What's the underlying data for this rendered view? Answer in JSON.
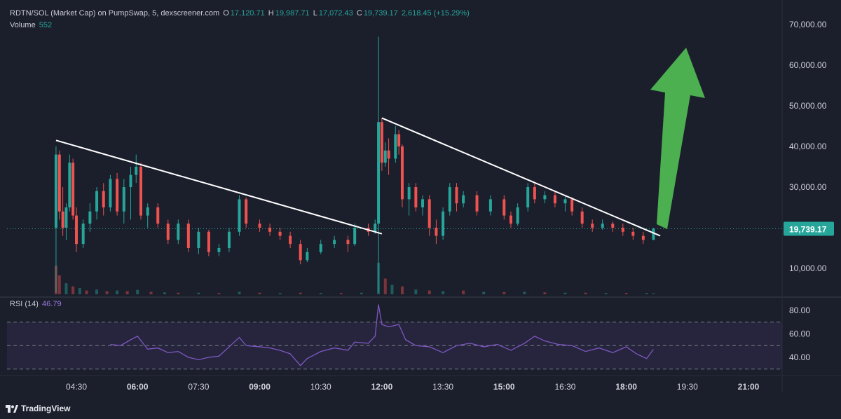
{
  "header": {
    "symbol_label": "RDTN/SOL (Market Cap) on PumpSwap, 5, dexscreener.com",
    "o_label": "O",
    "o_value": "17,120.71",
    "h_label": "H",
    "h_value": "19,987.71",
    "l_label": "L",
    "l_value": "17,072.43",
    "c_label": "C",
    "c_value": "19,739.17",
    "change": "2,618.45 (+15.29%)",
    "volume_label": "Volume",
    "volume_value": "552"
  },
  "rsi": {
    "label": "RSI (14)",
    "value": "46.79",
    "levels": [
      70,
      50,
      30
    ],
    "ticks": [
      "80.00",
      "60.00",
      "40.00"
    ]
  },
  "price_axis": {
    "ticks": [
      "70,000.00",
      "60,000.00",
      "50,000.00",
      "40,000.00",
      "30,000.00",
      "10,000.00"
    ],
    "last_price": "19,739.17"
  },
  "time_axis": [
    "04:30",
    "06:00",
    "07:30",
    "09:00",
    "10:30",
    "12:00",
    "13:30",
    "15:00",
    "16:30",
    "18:00",
    "19:30",
    "21:00"
  ],
  "branding": {
    "name": "TradingView"
  },
  "colors": {
    "up": "#26a69a",
    "down": "#ef5350",
    "rsi": "#7e57c2",
    "arrow": "#4caf50",
    "background": "#1b1e2b"
  },
  "chart_data": {
    "type": "candlestick",
    "price_range": [
      0,
      72000
    ],
    "time_range": [
      "04:00",
      "21:30"
    ],
    "candles": [
      {
        "t": "04:00",
        "o": 20000,
        "h": 40000,
        "l": 4000,
        "c": 38000
      },
      {
        "t": "04:05",
        "o": 38000,
        "h": 39000,
        "l": 22000,
        "c": 24000
      },
      {
        "t": "04:10",
        "o": 24000,
        "h": 30000,
        "l": 18000,
        "c": 20000
      },
      {
        "t": "04:15",
        "o": 20000,
        "h": 26000,
        "l": 17000,
        "c": 25000
      },
      {
        "t": "04:20",
        "o": 25000,
        "h": 38000,
        "l": 24000,
        "c": 36000
      },
      {
        "t": "04:25",
        "o": 36000,
        "h": 37000,
        "l": 22000,
        "c": 23000
      },
      {
        "t": "04:30",
        "o": 23000,
        "h": 25000,
        "l": 14000,
        "c": 16000
      },
      {
        "t": "04:40",
        "o": 16000,
        "h": 22000,
        "l": 15000,
        "c": 21000
      },
      {
        "t": "04:50",
        "o": 21000,
        "h": 26000,
        "l": 19000,
        "c": 24000
      },
      {
        "t": "05:00",
        "o": 24000,
        "h": 30000,
        "l": 22000,
        "c": 29000
      },
      {
        "t": "05:10",
        "o": 29000,
        "h": 31000,
        "l": 23000,
        "c": 25000
      },
      {
        "t": "05:20",
        "o": 25000,
        "h": 33000,
        "l": 24000,
        "c": 32000
      },
      {
        "t": "05:30",
        "o": 32000,
        "h": 33500,
        "l": 23000,
        "c": 24000
      },
      {
        "t": "05:40",
        "o": 24000,
        "h": 32000,
        "l": 21000,
        "c": 30000
      },
      {
        "t": "05:50",
        "o": 30000,
        "h": 35000,
        "l": 22000,
        "c": 33000
      },
      {
        "t": "05:58",
        "o": 33000,
        "h": 38000,
        "l": 31000,
        "c": 35000
      },
      {
        "t": "06:05",
        "o": 35000,
        "h": 36000,
        "l": 22000,
        "c": 23000
      },
      {
        "t": "06:15",
        "o": 23000,
        "h": 26000,
        "l": 20000,
        "c": 25000
      },
      {
        "t": "06:30",
        "o": 25000,
        "h": 26000,
        "l": 20000,
        "c": 21000
      },
      {
        "t": "06:45",
        "o": 21000,
        "h": 22000,
        "l": 16000,
        "c": 17000
      },
      {
        "t": "07:00",
        "o": 17000,
        "h": 22000,
        "l": 16000,
        "c": 21000
      },
      {
        "t": "07:15",
        "o": 21000,
        "h": 22000,
        "l": 14000,
        "c": 15000
      },
      {
        "t": "07:30",
        "o": 15000,
        "h": 20000,
        "l": 13500,
        "c": 19000
      },
      {
        "t": "07:45",
        "o": 19000,
        "h": 19500,
        "l": 13000,
        "c": 14000
      },
      {
        "t": "08:00",
        "o": 14000,
        "h": 16000,
        "l": 13000,
        "c": 15000
      },
      {
        "t": "08:15",
        "o": 15000,
        "h": 20000,
        "l": 14000,
        "c": 19000
      },
      {
        "t": "08:30",
        "o": 19000,
        "h": 28000,
        "l": 18000,
        "c": 27000
      },
      {
        "t": "08:40",
        "o": 27000,
        "h": 27500,
        "l": 20000,
        "c": 21000
      },
      {
        "t": "09:00",
        "o": 21000,
        "h": 22000,
        "l": 19000,
        "c": 20000
      },
      {
        "t": "09:15",
        "o": 20000,
        "h": 21000,
        "l": 18000,
        "c": 19000
      },
      {
        "t": "09:30",
        "o": 19000,
        "h": 20000,
        "l": 17000,
        "c": 18000
      },
      {
        "t": "09:45",
        "o": 18000,
        "h": 19000,
        "l": 15000,
        "c": 16000
      },
      {
        "t": "10:00",
        "o": 16000,
        "h": 17000,
        "l": 11000,
        "c": 12000
      },
      {
        "t": "10:10",
        "o": 12000,
        "h": 15000,
        "l": 11500,
        "c": 14000
      },
      {
        "t": "10:30",
        "o": 14000,
        "h": 17000,
        "l": 13500,
        "c": 16000
      },
      {
        "t": "10:50",
        "o": 16000,
        "h": 18000,
        "l": 15000,
        "c": 17000
      },
      {
        "t": "11:10",
        "o": 17000,
        "h": 18000,
        "l": 14000,
        "c": 16000
      },
      {
        "t": "11:20",
        "o": 16000,
        "h": 21000,
        "l": 15500,
        "c": 20000
      },
      {
        "t": "11:40",
        "o": 20000,
        "h": 21000,
        "l": 18000,
        "c": 19000
      },
      {
        "t": "11:50",
        "o": 19000,
        "h": 22000,
        "l": 18500,
        "c": 21000
      },
      {
        "t": "11:55",
        "o": 21000,
        "h": 67000,
        "l": 4000,
        "c": 46000
      },
      {
        "t": "12:00",
        "o": 46000,
        "h": 47000,
        "l": 34000,
        "c": 36000
      },
      {
        "t": "12:05",
        "o": 36000,
        "h": 41000,
        "l": 35000,
        "c": 39000
      },
      {
        "t": "12:10",
        "o": 39000,
        "h": 42000,
        "l": 33000,
        "c": 37000
      },
      {
        "t": "12:20",
        "o": 37000,
        "h": 45000,
        "l": 36000,
        "c": 43000
      },
      {
        "t": "12:25",
        "o": 43000,
        "h": 44000,
        "l": 38000,
        "c": 40000
      },
      {
        "t": "12:30",
        "o": 40000,
        "h": 40500,
        "l": 25000,
        "c": 27000
      },
      {
        "t": "12:40",
        "o": 27000,
        "h": 31000,
        "l": 23000,
        "c": 30000
      },
      {
        "t": "12:50",
        "o": 30000,
        "h": 31000,
        "l": 24000,
        "c": 25000
      },
      {
        "t": "13:00",
        "o": 25000,
        "h": 28000,
        "l": 23000,
        "c": 27000
      },
      {
        "t": "13:10",
        "o": 27000,
        "h": 28000,
        "l": 18000,
        "c": 20000
      },
      {
        "t": "13:20",
        "o": 20000,
        "h": 22000,
        "l": 16000,
        "c": 18000
      },
      {
        "t": "13:30",
        "o": 18000,
        "h": 25000,
        "l": 17000,
        "c": 24000
      },
      {
        "t": "13:40",
        "o": 24000,
        "h": 31000,
        "l": 23000,
        "c": 30000
      },
      {
        "t": "13:50",
        "o": 30000,
        "h": 31000,
        "l": 24000,
        "c": 26000
      },
      {
        "t": "14:00",
        "o": 26000,
        "h": 29000,
        "l": 25000,
        "c": 28000
      },
      {
        "t": "14:20",
        "o": 28000,
        "h": 29000,
        "l": 23000,
        "c": 24000
      },
      {
        "t": "14:40",
        "o": 24000,
        "h": 28000,
        "l": 23000,
        "c": 27000
      },
      {
        "t": "15:00",
        "o": 27000,
        "h": 28000,
        "l": 22000,
        "c": 23000
      },
      {
        "t": "15:10",
        "o": 23000,
        "h": 24000,
        "l": 20000,
        "c": 21000
      },
      {
        "t": "15:20",
        "o": 21000,
        "h": 26000,
        "l": 20500,
        "c": 25000
      },
      {
        "t": "15:35",
        "o": 25000,
        "h": 31000,
        "l": 24000,
        "c": 30000
      },
      {
        "t": "15:45",
        "o": 30000,
        "h": 31000,
        "l": 26000,
        "c": 27000
      },
      {
        "t": "16:00",
        "o": 27000,
        "h": 29000,
        "l": 26000,
        "c": 28000
      },
      {
        "t": "16:15",
        "o": 28000,
        "h": 29000,
        "l": 25000,
        "c": 26000
      },
      {
        "t": "16:30",
        "o": 26000,
        "h": 28000,
        "l": 24000,
        "c": 27000
      },
      {
        "t": "16:40",
        "o": 27000,
        "h": 27500,
        "l": 23000,
        "c": 24000
      },
      {
        "t": "16:55",
        "o": 24000,
        "h": 25000,
        "l": 20000,
        "c": 21000
      },
      {
        "t": "17:10",
        "o": 21000,
        "h": 22000,
        "l": 19000,
        "c": 20000
      },
      {
        "t": "17:25",
        "o": 20000,
        "h": 22000,
        "l": 19500,
        "c": 21000
      },
      {
        "t": "17:40",
        "o": 21000,
        "h": 21500,
        "l": 19000,
        "c": 20000
      },
      {
        "t": "17:55",
        "o": 20000,
        "h": 21000,
        "l": 18000,
        "c": 19000
      },
      {
        "t": "18:10",
        "o": 19000,
        "h": 20000,
        "l": 17000,
        "c": 18000
      },
      {
        "t": "18:25",
        "o": 18000,
        "h": 19000,
        "l": 16000,
        "c": 17000
      },
      {
        "t": "18:40",
        "o": 17000,
        "h": 20000,
        "l": 17000,
        "c": 19739
      }
    ],
    "volume_bars": [
      {
        "t": "04:00",
        "v": 0.9,
        "up": false
      },
      {
        "t": "04:05",
        "v": 0.6,
        "up": false
      },
      {
        "t": "04:15",
        "v": 0.35,
        "up": true
      },
      {
        "t": "04:25",
        "v": 0.25,
        "up": false
      },
      {
        "t": "04:35",
        "v": 0.2,
        "up": true
      },
      {
        "t": "04:45",
        "v": 0.12,
        "up": false
      },
      {
        "t": "05:00",
        "v": 0.15,
        "up": true
      },
      {
        "t": "05:15",
        "v": 0.1,
        "up": false
      },
      {
        "t": "05:30",
        "v": 0.12,
        "up": true
      },
      {
        "t": "05:45",
        "v": 0.1,
        "up": false
      },
      {
        "t": "06:00",
        "v": 0.14,
        "up": true
      },
      {
        "t": "06:20",
        "v": 0.08,
        "up": false
      },
      {
        "t": "06:40",
        "v": 0.06,
        "up": true
      },
      {
        "t": "07:00",
        "v": 0.05,
        "up": false
      },
      {
        "t": "07:30",
        "v": 0.05,
        "up": true
      },
      {
        "t": "08:00",
        "v": 0.04,
        "up": false
      },
      {
        "t": "08:30",
        "v": 0.08,
        "up": true
      },
      {
        "t": "09:00",
        "v": 0.05,
        "up": false
      },
      {
        "t": "09:30",
        "v": 0.04,
        "up": true
      },
      {
        "t": "10:00",
        "v": 0.05,
        "up": false
      },
      {
        "t": "10:30",
        "v": 0.04,
        "up": true
      },
      {
        "t": "11:00",
        "v": 0.04,
        "up": false
      },
      {
        "t": "11:30",
        "v": 0.05,
        "up": true
      },
      {
        "t": "11:55",
        "v": 1.0,
        "up": true
      },
      {
        "t": "12:05",
        "v": 0.5,
        "up": false
      },
      {
        "t": "12:15",
        "v": 0.3,
        "up": true
      },
      {
        "t": "12:30",
        "v": 0.25,
        "up": false
      },
      {
        "t": "12:50",
        "v": 0.15,
        "up": true
      },
      {
        "t": "13:10",
        "v": 0.12,
        "up": false
      },
      {
        "t": "13:30",
        "v": 0.1,
        "up": true
      },
      {
        "t": "14:00",
        "v": 0.12,
        "up": false
      },
      {
        "t": "14:30",
        "v": 0.08,
        "up": true
      },
      {
        "t": "15:00",
        "v": 0.07,
        "up": false
      },
      {
        "t": "15:30",
        "v": 0.08,
        "up": true
      },
      {
        "t": "16:00",
        "v": 0.06,
        "up": false
      },
      {
        "t": "16:30",
        "v": 0.05,
        "up": true
      },
      {
        "t": "17:00",
        "v": 0.05,
        "up": false
      },
      {
        "t": "17:30",
        "v": 0.04,
        "up": true
      },
      {
        "t": "18:00",
        "v": 0.04,
        "up": false
      },
      {
        "t": "18:30",
        "v": 0.04,
        "up": true
      },
      {
        "t": "18:40",
        "v": 0.03,
        "up": true
      }
    ],
    "rsi_series": [
      {
        "t": "05:20",
        "v": 51
      },
      {
        "t": "05:35",
        "v": 50
      },
      {
        "t": "05:50",
        "v": 55
      },
      {
        "t": "06:00",
        "v": 58
      },
      {
        "t": "06:15",
        "v": 47
      },
      {
        "t": "06:30",
        "v": 48
      },
      {
        "t": "06:45",
        "v": 44
      },
      {
        "t": "07:00",
        "v": 45
      },
      {
        "t": "07:15",
        "v": 40
      },
      {
        "t": "07:30",
        "v": 38
      },
      {
        "t": "07:45",
        "v": 40
      },
      {
        "t": "08:00",
        "v": 41
      },
      {
        "t": "08:15",
        "v": 49
      },
      {
        "t": "08:30",
        "v": 57
      },
      {
        "t": "08:40",
        "v": 50
      },
      {
        "t": "09:00",
        "v": 49
      },
      {
        "t": "09:15",
        "v": 48
      },
      {
        "t": "09:30",
        "v": 46
      },
      {
        "t": "09:45",
        "v": 43
      },
      {
        "t": "10:00",
        "v": 33
      },
      {
        "t": "10:10",
        "v": 39
      },
      {
        "t": "10:30",
        "v": 45
      },
      {
        "t": "10:50",
        "v": 48
      },
      {
        "t": "11:10",
        "v": 46
      },
      {
        "t": "11:20",
        "v": 53
      },
      {
        "t": "11:40",
        "v": 52
      },
      {
        "t": "11:50",
        "v": 58
      },
      {
        "t": "11:55",
        "v": 85
      },
      {
        "t": "12:00",
        "v": 68
      },
      {
        "t": "12:10",
        "v": 66
      },
      {
        "t": "12:25",
        "v": 68
      },
      {
        "t": "12:35",
        "v": 55
      },
      {
        "t": "12:50",
        "v": 50
      },
      {
        "t": "13:10",
        "v": 49
      },
      {
        "t": "13:30",
        "v": 44
      },
      {
        "t": "13:50",
        "v": 50
      },
      {
        "t": "14:10",
        "v": 52
      },
      {
        "t": "14:30",
        "v": 49
      },
      {
        "t": "14:50",
        "v": 51
      },
      {
        "t": "15:10",
        "v": 46
      },
      {
        "t": "15:30",
        "v": 52
      },
      {
        "t": "15:45",
        "v": 58
      },
      {
        "t": "16:00",
        "v": 54
      },
      {
        "t": "16:20",
        "v": 51
      },
      {
        "t": "16:40",
        "v": 50
      },
      {
        "t": "17:00",
        "v": 45
      },
      {
        "t": "17:20",
        "v": 48
      },
      {
        "t": "17:40",
        "v": 44
      },
      {
        "t": "18:00",
        "v": 49
      },
      {
        "t": "18:15",
        "v": 43
      },
      {
        "t": "18:30",
        "v": 39
      },
      {
        "t": "18:40",
        "v": 46.79
      }
    ],
    "trendlines": [
      {
        "from": {
          "t": "04:00",
          "v": 41500
        },
        "to": {
          "t": "12:00",
          "v": 18500
        }
      },
      {
        "from": {
          "t": "12:00",
          "v": 47000
        },
        "to": {
          "t": "18:50",
          "v": 18000
        }
      }
    ],
    "annotation": {
      "type": "arrow-up",
      "from": {
        "t": "18:40",
        "v": 21000
      },
      "to": {
        "t": "19:00",
        "v": 64000
      }
    }
  }
}
